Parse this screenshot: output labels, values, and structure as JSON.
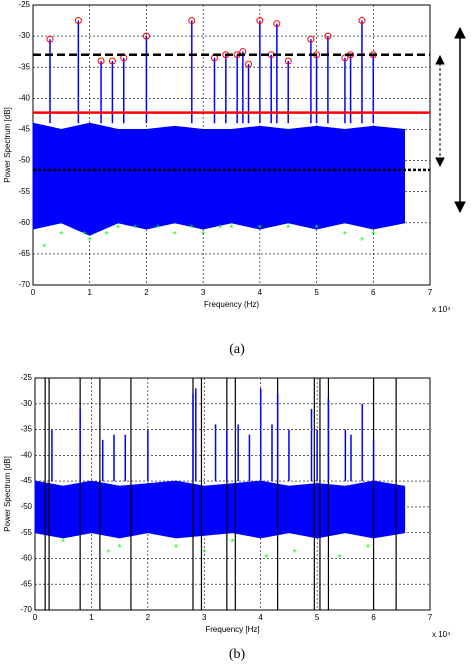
{
  "chart_data": [
    {
      "type": "stem",
      "caption": "(a)",
      "xlabel": "Frequency (Hz)",
      "ylabel": "Power Spectrum [dB]",
      "x_multiplier": "x 10⁴",
      "xlim": [
        0,
        7
      ],
      "xticks": [
        0,
        1,
        2,
        3,
        4,
        5,
        6,
        7
      ],
      "ylim": [
        -70,
        -25
      ],
      "yticks": [
        -70,
        -65,
        -60,
        -55,
        -50,
        -45,
        -40,
        -35,
        -30,
        -25
      ],
      "grid": true,
      "noise": {
        "color": "#0000ff",
        "x": [
          0,
          0.5,
          1,
          1.5,
          2,
          2.5,
          3,
          3.5,
          4,
          4.5,
          5,
          5.5,
          6,
          6.55
        ],
        "upper": [
          -44,
          -45,
          -44,
          -45,
          -45,
          -44.5,
          -45,
          -45,
          -44.5,
          -45,
          -44.5,
          -45,
          -44.5,
          -45
        ],
        "lower": [
          -61,
          -60,
          -62,
          -60,
          -61,
          -60,
          -61,
          -60,
          -61,
          -60,
          -61,
          -60,
          -61,
          -60
        ]
      },
      "peaks": {
        "color": "#0000ff",
        "marker_color": "#ff0000",
        "x": [
          0.3,
          0.8,
          1.2,
          1.4,
          1.6,
          2.0,
          2.8,
          3.2,
          3.4,
          3.6,
          3.7,
          3.8,
          4.0,
          4.2,
          4.3,
          4.5,
          4.9,
          5.0,
          5.2,
          5.5,
          5.6,
          5.8,
          6.0
        ],
        "values": [
          -30.5,
          -27.5,
          -34,
          -34,
          -33.5,
          -30,
          -27.5,
          -33.5,
          -33,
          -33,
          -32.5,
          -34.5,
          -27.5,
          -33,
          -28,
          -34,
          -30.5,
          -33,
          -30,
          -33.5,
          -33,
          -27.5,
          -33
        ]
      },
      "minima": {
        "color": "#00ff00",
        "x": [
          0.2,
          0.5,
          0.9,
          1.0,
          1.3,
          1.5,
          1.8,
          2.2,
          2.5,
          2.8,
          3.0,
          3.3,
          3.5,
          4.0,
          4.5,
          5.0,
          5.5,
          5.8,
          6.0
        ],
        "values": [
          -64,
          -62,
          -62,
          -63,
          -62,
          -61,
          -61,
          -61,
          -62,
          -61,
          -62,
          -61,
          -61,
          -61,
          -61,
          -61,
          -62,
          -63,
          -62
        ]
      },
      "hlines": [
        {
          "value": -33,
          "color": "#000000",
          "style": "dashed"
        },
        {
          "value": -42.3,
          "color": "#ff0000",
          "style": "solid"
        },
        {
          "value": -51.5,
          "color": "#000000",
          "style": "dotted"
        }
      ]
    },
    {
      "type": "stem",
      "caption": "(b)",
      "xlabel": "Frequency [Hz]",
      "ylabel": "Power Spectrum [dB]",
      "x_multiplier": "x 10⁴",
      "xlim": [
        0,
        7
      ],
      "xticks": [
        0,
        1,
        2,
        3,
        4,
        5,
        6,
        7
      ],
      "ylim": [
        -70,
        -25
      ],
      "yticks": [
        -70,
        -65,
        -60,
        -55,
        -50,
        -45,
        -40,
        -35,
        -30,
        -25
      ],
      "grid": true,
      "noise": {
        "color": "#0000ff",
        "x": [
          0,
          0.5,
          1,
          1.5,
          2,
          2.5,
          3,
          3.5,
          4,
          4.5,
          5,
          5.5,
          6,
          6.55
        ],
        "upper": [
          -45,
          -46,
          -45,
          -46,
          -45.5,
          -45,
          -46,
          -45.5,
          -45,
          -46,
          -45.5,
          -46,
          -45,
          -46
        ],
        "lower": [
          -55,
          -56,
          -55,
          -56,
          -55,
          -56,
          -55.5,
          -55,
          -56,
          -55,
          -56,
          -55,
          -56,
          -55
        ]
      },
      "peaks": {
        "color": "#0000ff",
        "x": [
          0.3,
          0.8,
          1.2,
          1.4,
          1.6,
          2.0,
          2.8,
          2.85,
          3.2,
          3.4,
          3.6,
          3.8,
          4.0,
          4.2,
          4.3,
          4.5,
          4.9,
          5.0,
          5.2,
          5.5,
          5.6,
          5.8,
          6.0
        ],
        "values": [
          -35,
          -31,
          -37,
          -36,
          -36,
          -35,
          -28,
          -27,
          -34,
          -35,
          -34,
          -36,
          -27,
          -34,
          -28,
          -35,
          -31,
          -35,
          -29,
          -35,
          -36,
          -30,
          -37
        ]
      },
      "minima": {
        "color": "#00ff00",
        "x": [
          0.5,
          1.3,
          1.5,
          2.5,
          3.0,
          3.5,
          4.1,
          4.6,
          5.4,
          5.9
        ],
        "values": [
          -57,
          -59,
          -58,
          -58,
          -59,
          -57,
          -60,
          -59,
          -60,
          -58
        ]
      },
      "vlines": {
        "color": "#000000",
        "x": [
          0.18,
          0.25,
          0.8,
          1.15,
          1.7,
          2.8,
          2.95,
          3.4,
          3.55,
          4.3,
          4.95,
          5.05,
          5.2,
          6.0,
          6.4
        ]
      }
    }
  ]
}
